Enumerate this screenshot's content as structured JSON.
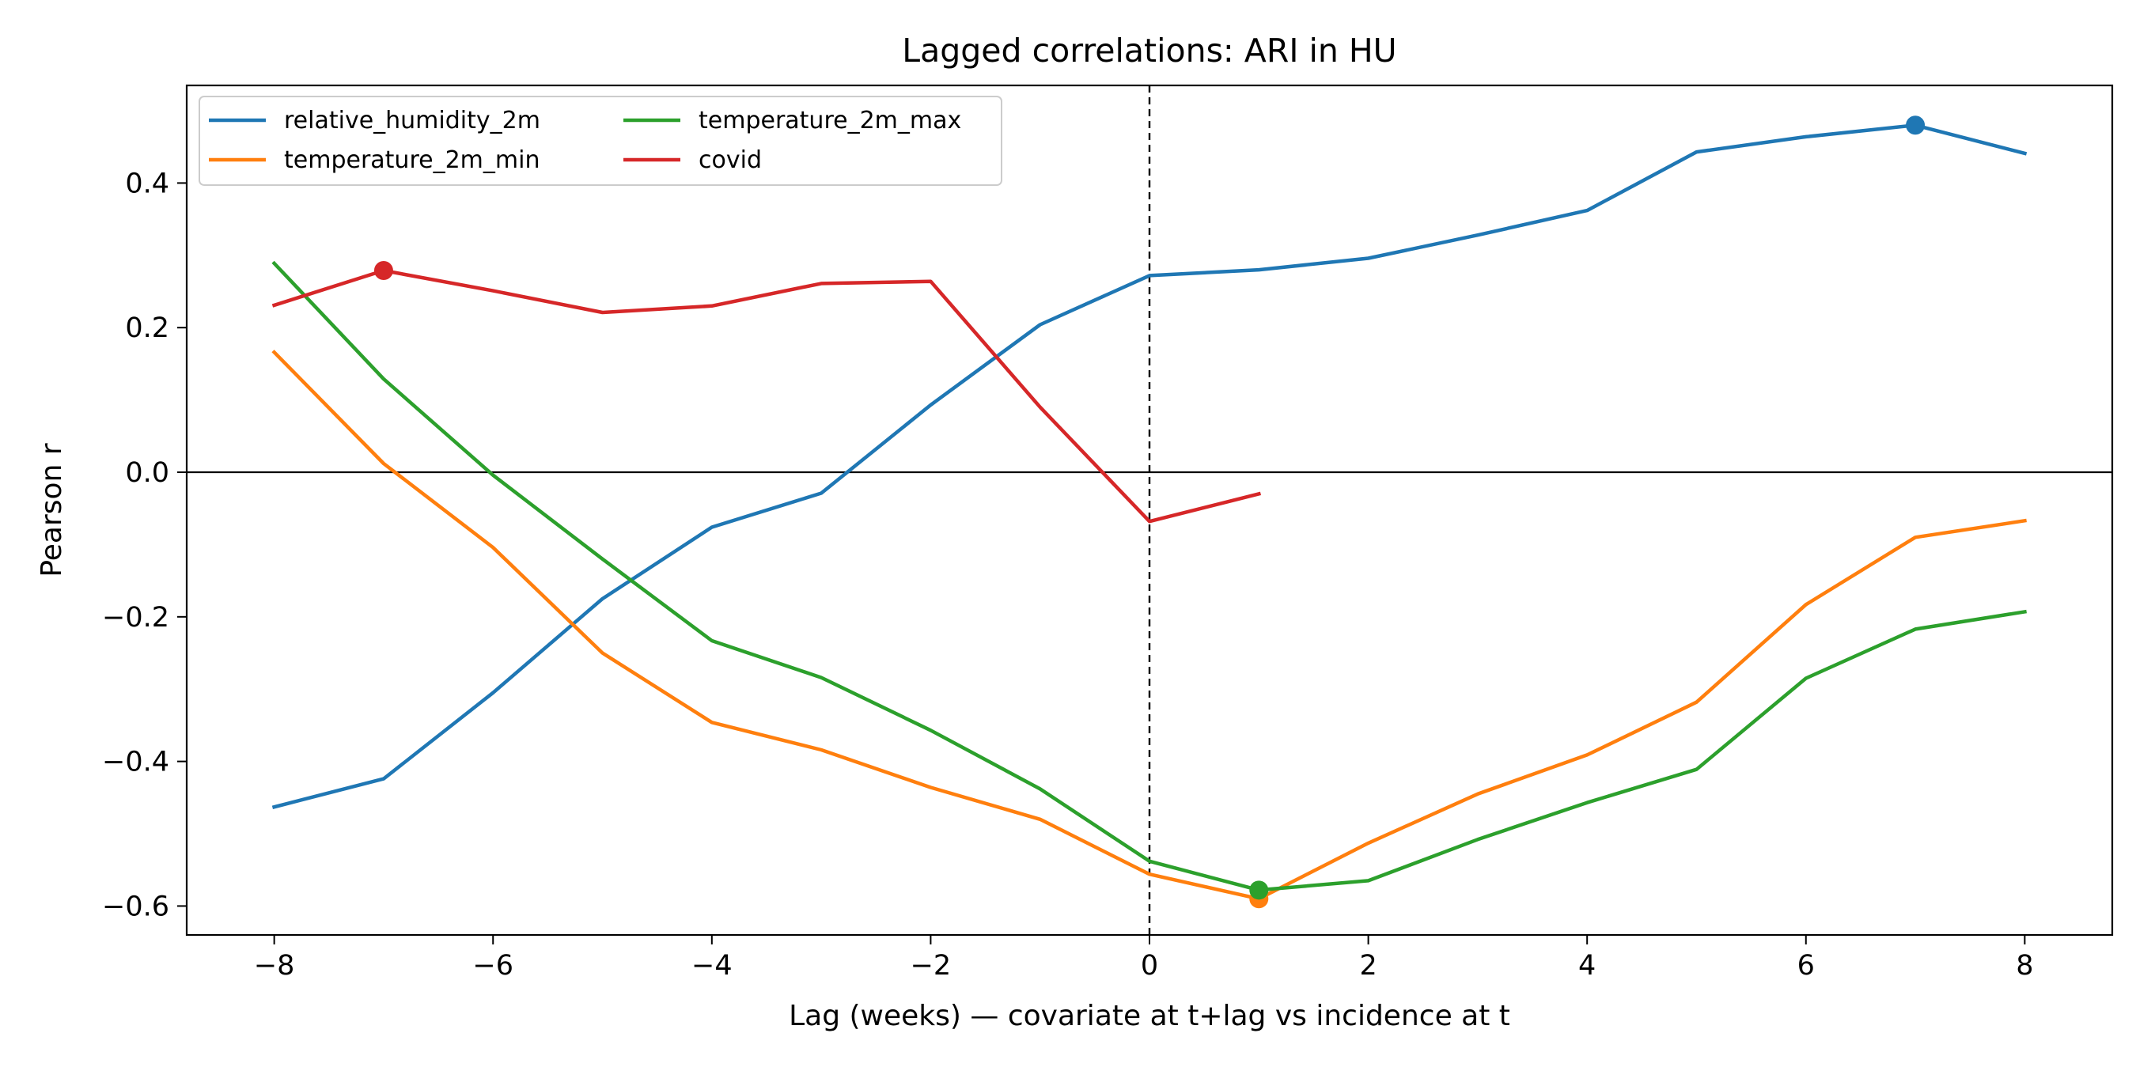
{
  "chart_data": {
    "type": "line",
    "title": "Lagged correlations: ARI in HU",
    "xlabel": "Lag (weeks) — covariate at t+lag vs incidence at t",
    "ylabel": "Pearson r",
    "xlim": [
      -8.8,
      8.8
    ],
    "ylim": [
      -0.64,
      0.535
    ],
    "xticks": [
      -8,
      -6,
      -4,
      -2,
      0,
      2,
      4,
      6,
      8
    ],
    "xtick_labels": [
      "−8",
      "−6",
      "−4",
      "−2",
      "0",
      "2",
      "4",
      "6",
      "8"
    ],
    "yticks": [
      -0.6,
      -0.4,
      -0.2,
      0.0,
      0.2,
      0.4
    ],
    "ytick_labels": [
      "−0.6",
      "−0.4",
      "−0.2",
      "0.0",
      "0.2",
      "0.4"
    ],
    "grid": false,
    "legend_position": "upper-left",
    "legend_columns": 2,
    "reference_lines": [
      {
        "orientation": "horizontal",
        "value": 0,
        "style": "solid",
        "color": "#000000"
      },
      {
        "orientation": "vertical",
        "value": 0,
        "style": "dashed",
        "color": "#000000"
      }
    ],
    "series": [
      {
        "name": "relative_humidity_2m",
        "color": "#1f77b4",
        "x": [
          -8,
          -7,
          -6,
          -5,
          -4,
          -3,
          -2,
          -1,
          0,
          1,
          2,
          3,
          4,
          5,
          6,
          7,
          8
        ],
        "y": [
          -0.463,
          -0.424,
          -0.305,
          -0.175,
          -0.076,
          -0.029,
          0.093,
          0.204,
          0.272,
          0.28,
          0.296,
          0.328,
          0.362,
          0.443,
          0.464,
          0.48,
          0.441
        ],
        "marker": {
          "x": 7,
          "y": 0.48
        }
      },
      {
        "name": "temperature_2m_min",
        "color": "#ff7f0e",
        "x": [
          -8,
          -7,
          -6,
          -5,
          -4,
          -3,
          -2,
          -1,
          0,
          1,
          2,
          3,
          4,
          5,
          6,
          7,
          8
        ],
        "y": [
          0.166,
          0.012,
          -0.104,
          -0.25,
          -0.346,
          -0.384,
          -0.436,
          -0.48,
          -0.556,
          -0.59,
          -0.513,
          -0.445,
          -0.391,
          -0.318,
          -0.183,
          -0.09,
          -0.067
        ],
        "marker": {
          "x": 1,
          "y": -0.59
        }
      },
      {
        "name": "temperature_2m_max",
        "color": "#2ca02c",
        "x": [
          -8,
          -7,
          -6,
          -5,
          -4,
          -3,
          -2,
          -1,
          0,
          1,
          2,
          3,
          4,
          5,
          6,
          7,
          8
        ],
        "y": [
          0.289,
          0.129,
          -0.004,
          -0.12,
          -0.233,
          -0.284,
          -0.357,
          -0.438,
          -0.538,
          -0.578,
          -0.565,
          -0.508,
          -0.457,
          -0.411,
          -0.285,
          -0.217,
          -0.193
        ],
        "marker": {
          "x": 1,
          "y": -0.578
        }
      },
      {
        "name": "covid",
        "color": "#d62728",
        "x": [
          -8,
          -7,
          -6,
          -5,
          -4,
          -3,
          -2,
          -1,
          0,
          1
        ],
        "y": [
          0.231,
          0.279,
          0.251,
          0.221,
          0.23,
          0.261,
          0.264,
          0.09,
          -0.068,
          -0.03
        ],
        "marker": {
          "x": -7,
          "y": 0.279
        }
      }
    ]
  }
}
